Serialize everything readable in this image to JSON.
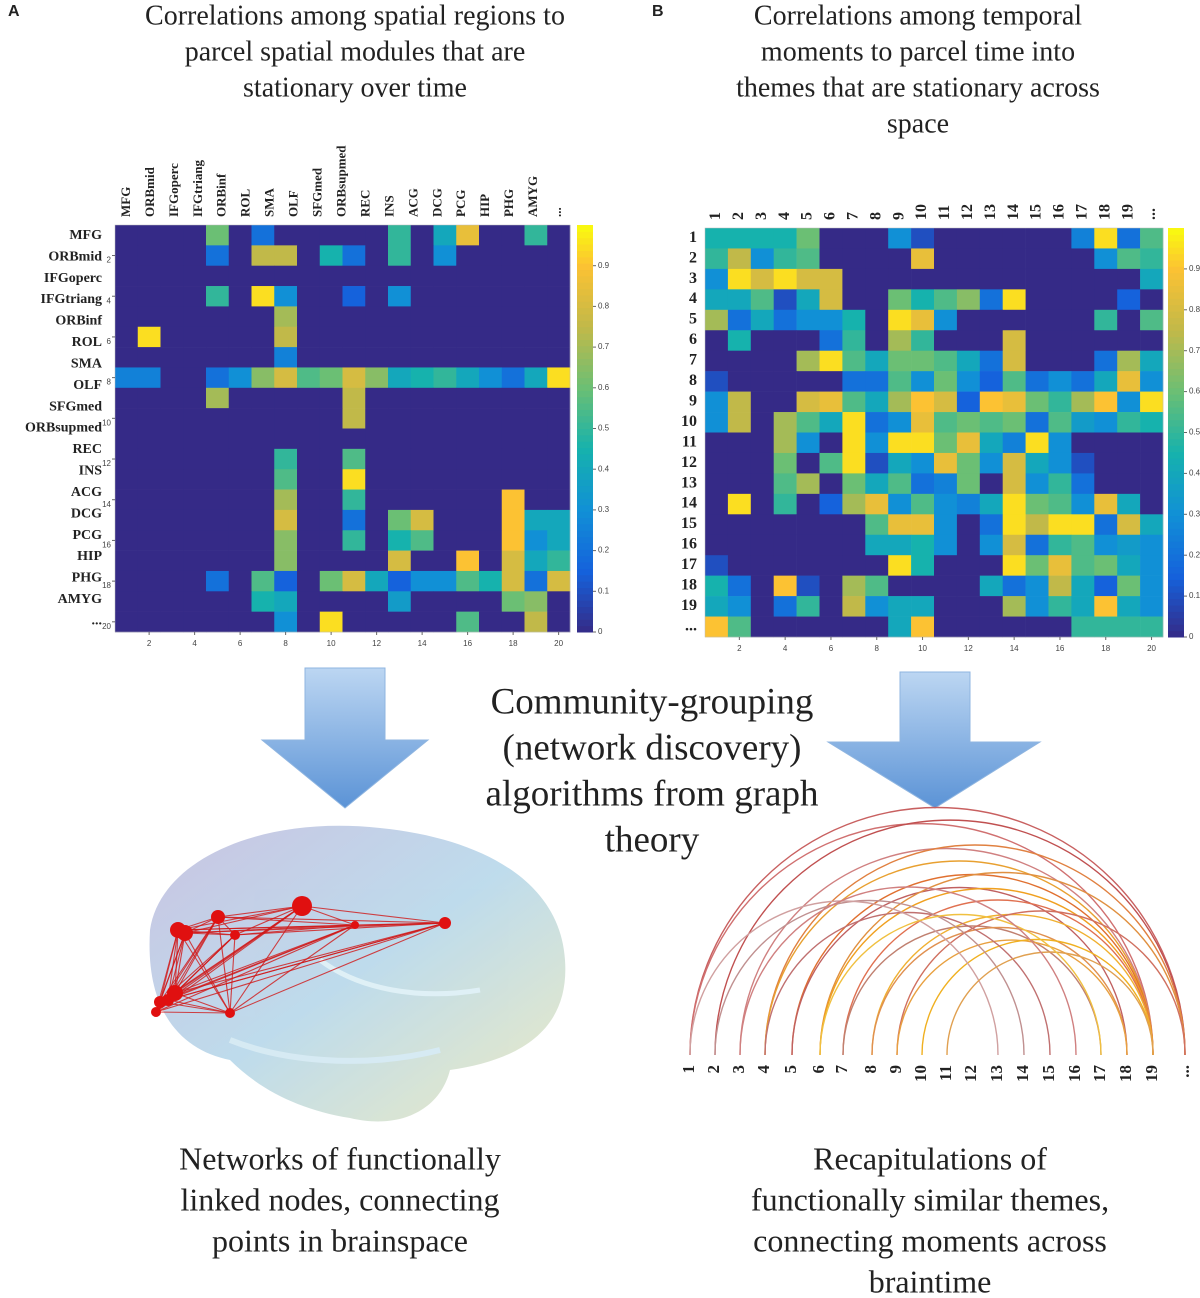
{
  "chart_data": [
    {
      "type": "heatmap",
      "panel": "A",
      "title_lines": [
        "Correlations among spatial regions to",
        "parcel spatial modules that are",
        "stationary over time"
      ],
      "row_labels": [
        "MFG",
        "ORBmid",
        "IFGoperc",
        "IFGtriang",
        "ORBinf",
        "ROL",
        "SMA",
        "OLF",
        "SFGmed",
        "ORBsupmed",
        "REC",
        "INS",
        "ACG",
        "DCG",
        "PCG",
        "HIP",
        "PHG",
        "AMYG",
        "..."
      ],
      "col_labels": [
        "MFG",
        "ORBmid",
        "IFGoperc",
        "IFGtriang",
        "ORBinf",
        "ROL",
        "SMA",
        "OLF",
        "SFGmed",
        "ORBsupmed",
        "REC",
        "INS",
        "ACG",
        "DCG",
        "PCG",
        "HIP",
        "PHG",
        "AMYG",
        "..."
      ],
      "xlim": [
        0.5,
        20.5
      ],
      "ylim": [
        0.5,
        20.5
      ],
      "xticks": [
        2,
        4,
        6,
        8,
        10,
        12,
        14,
        16,
        18,
        20
      ],
      "yticks": [
        2,
        4,
        6,
        8,
        10,
        12,
        14,
        16,
        18,
        20
      ],
      "clim": [
        0,
        1
      ],
      "cticks": [
        0,
        0.1,
        0.2,
        0.3,
        0.4,
        0.5,
        0.6,
        0.7,
        0.8,
        0.9
      ],
      "values": [
        [
          0,
          0,
          0,
          0,
          0.6,
          0,
          0.2,
          0,
          0,
          0,
          0,
          0,
          0.5,
          0,
          0.4,
          0.85,
          0,
          0,
          0.5,
          0
        ],
        [
          0,
          0,
          0,
          0,
          0.2,
          0,
          0.75,
          0.75,
          0,
          0.45,
          0.2,
          0,
          0.5,
          0,
          0.3,
          0,
          0,
          0,
          0,
          0
        ],
        [
          0,
          0,
          0,
          0,
          0,
          0,
          0,
          0,
          0,
          0,
          0,
          0,
          0,
          0,
          0,
          0,
          0,
          0,
          0,
          0
        ],
        [
          0,
          0,
          0,
          0,
          0.5,
          0,
          0.95,
          0.3,
          0,
          0,
          0.15,
          0,
          0.3,
          0,
          0,
          0,
          0,
          0,
          0,
          0
        ],
        [
          0,
          0,
          0,
          0,
          0,
          0,
          0,
          0.7,
          0,
          0,
          0,
          0,
          0,
          0,
          0,
          0,
          0,
          0,
          0,
          0
        ],
        [
          0,
          0.95,
          0,
          0,
          0,
          0,
          0,
          0.75,
          0,
          0,
          0,
          0,
          0,
          0,
          0,
          0,
          0,
          0,
          0,
          0
        ],
        [
          0,
          0,
          0,
          0,
          0,
          0,
          0,
          0.25,
          0,
          0,
          0,
          0,
          0,
          0,
          0,
          0,
          0,
          0,
          0,
          0
        ],
        [
          0.25,
          0.25,
          0,
          0,
          0.2,
          0.3,
          0.65,
          0.8,
          0.55,
          0.6,
          0.8,
          0.65,
          0.4,
          0.45,
          0.5,
          0.4,
          0.3,
          0.2,
          0.4,
          0.95
        ],
        [
          0,
          0,
          0,
          0,
          0.7,
          0,
          0,
          0,
          0,
          0,
          0.75,
          0,
          0,
          0,
          0,
          0,
          0,
          0,
          0,
          0
        ],
        [
          0,
          0,
          0,
          0,
          0,
          0,
          0,
          0,
          0,
          0,
          0.75,
          0,
          0,
          0,
          0,
          0,
          0,
          0,
          0,
          0
        ],
        [
          0,
          0,
          0,
          0,
          0,
          0,
          0,
          0,
          0,
          0,
          0,
          0,
          0,
          0,
          0,
          0,
          0,
          0,
          0,
          0
        ],
        [
          0,
          0,
          0,
          0,
          0,
          0,
          0,
          0.5,
          0,
          0,
          0.55,
          0,
          0,
          0,
          0,
          0,
          0,
          0,
          0,
          0
        ],
        [
          0,
          0,
          0,
          0,
          0,
          0,
          0,
          0.55,
          0,
          0,
          0.95,
          0,
          0,
          0,
          0,
          0,
          0,
          0,
          0,
          0
        ],
        [
          0,
          0,
          0,
          0,
          0,
          0,
          0,
          0.7,
          0,
          0,
          0.5,
          0,
          0,
          0,
          0,
          0,
          0,
          0.9,
          0,
          0
        ],
        [
          0,
          0,
          0,
          0,
          0,
          0,
          0,
          0.8,
          0,
          0,
          0.2,
          0,
          0.6,
          0.8,
          0,
          0,
          0,
          0.9,
          0.4,
          0.4
        ],
        [
          0,
          0,
          0,
          0,
          0,
          0,
          0,
          0.65,
          0,
          0,
          0.5,
          0,
          0.45,
          0.55,
          0,
          0,
          0,
          0.9,
          0.3,
          0.4
        ],
        [
          0,
          0,
          0,
          0,
          0,
          0,
          0,
          0.65,
          0,
          0,
          0,
          0,
          0.8,
          0,
          0,
          0.9,
          0,
          0.8,
          0.4,
          0.5
        ],
        [
          0,
          0,
          0,
          0,
          0.2,
          0,
          0.55,
          0.15,
          0,
          0.6,
          0.8,
          0.4,
          0.15,
          0.3,
          0.3,
          0.55,
          0.45,
          0.8,
          0.2,
          0.8
        ],
        [
          0,
          0,
          0,
          0,
          0,
          0,
          0.45,
          0.4,
          0,
          0,
          0,
          0,
          0.35,
          0,
          0,
          0,
          0,
          0.6,
          0.65,
          0
        ],
        [
          0,
          0,
          0,
          0,
          0,
          0,
          0,
          0.3,
          0,
          0.95,
          0,
          0,
          0,
          0,
          0,
          0.55,
          0,
          0,
          0.75,
          0
        ]
      ]
    },
    {
      "type": "heatmap",
      "panel": "B",
      "title_lines": [
        "Correlations among temporal",
        "moments to parcel time into",
        "themes that are stationary across",
        "space"
      ],
      "row_labels": [
        "1",
        "2",
        "3",
        "4",
        "5",
        "6",
        "7",
        "8",
        "9",
        "10",
        "11",
        "12",
        "13",
        "14",
        "15",
        "16",
        "17",
        "18",
        "19",
        "..."
      ],
      "col_labels": [
        "1",
        "2",
        "3",
        "4",
        "5",
        "6",
        "7",
        "8",
        "9",
        "10",
        "11",
        "12",
        "13",
        "14",
        "15",
        "16",
        "17",
        "18",
        "19",
        "..."
      ],
      "xlim": [
        0.5,
        20.5
      ],
      "ylim": [
        0.5,
        20.5
      ],
      "xticks": [
        2,
        4,
        6,
        8,
        10,
        12,
        14,
        16,
        18,
        20
      ],
      "clim": [
        0,
        1
      ],
      "cticks": [
        0,
        0.1,
        0.2,
        0.3,
        0.4,
        0.5,
        0.6,
        0.7,
        0.8,
        0.9
      ],
      "values": [
        [
          0.45,
          0.45,
          0.45,
          0.45,
          0.6,
          0,
          0,
          0,
          0.3,
          0.1,
          0,
          0,
          0,
          0,
          0,
          0,
          0.25,
          0.95,
          0.2,
          0.55
        ],
        [
          0.5,
          0.75,
          0.3,
          0.5,
          0.55,
          0,
          0,
          0,
          0,
          0.85,
          0,
          0,
          0,
          0,
          0,
          0,
          0,
          0.3,
          0.55,
          0.5
        ],
        [
          0.3,
          0.95,
          0.8,
          0.95,
          0.8,
          0.8,
          0,
          0,
          0,
          0,
          0,
          0,
          0,
          0,
          0,
          0,
          0,
          0,
          0,
          0.4
        ],
        [
          0.4,
          0.4,
          0.55,
          0.1,
          0.4,
          0.8,
          0,
          0,
          0.6,
          0.45,
          0.55,
          0.65,
          0.2,
          0.95,
          0,
          0,
          0,
          0,
          0.15,
          0
        ],
        [
          0.7,
          0.2,
          0.4,
          0.2,
          0.3,
          0.3,
          0.45,
          0,
          0.95,
          0.85,
          0.3,
          0,
          0,
          0,
          0,
          0,
          0,
          0.5,
          0,
          0.55
        ],
        [
          0,
          0.45,
          0,
          0,
          0,
          0.2,
          0.5,
          0,
          0.7,
          0.5,
          0,
          0,
          0,
          0.8,
          0,
          0,
          0,
          0,
          0,
          0
        ],
        [
          0,
          0,
          0,
          0,
          0.7,
          0.95,
          0.55,
          0.4,
          0.6,
          0.6,
          0.55,
          0.4,
          0.2,
          0.8,
          0,
          0,
          0,
          0.2,
          0.7,
          0.4
        ],
        [
          0.1,
          0,
          0,
          0,
          0,
          0,
          0.2,
          0.2,
          0.55,
          0.3,
          0.6,
          0.3,
          0.15,
          0.55,
          0.2,
          0.3,
          0.2,
          0.4,
          0.85,
          0.3
        ],
        [
          0.3,
          0.75,
          0,
          0,
          0.8,
          0.85,
          0.55,
          0.4,
          0.7,
          0.9,
          0.8,
          0.15,
          0.9,
          0.85,
          0.6,
          0.5,
          0.7,
          0.9,
          0.3,
          0.95
        ],
        [
          0.3,
          0.75,
          0,
          0.7,
          0.55,
          0.4,
          0.95,
          0.2,
          0.3,
          0.85,
          0.55,
          0.6,
          0.55,
          0.6,
          0.2,
          0.55,
          0.35,
          0.3,
          0.5,
          0.45
        ],
        [
          0,
          0,
          0,
          0.7,
          0.3,
          0,
          0.95,
          0.3,
          0.95,
          0.95,
          0.6,
          0.85,
          0.4,
          0.25,
          0.95,
          0.3,
          0,
          0,
          0,
          0
        ],
        [
          0,
          0,
          0,
          0.6,
          0,
          0.55,
          0.95,
          0.1,
          0.4,
          0.3,
          0.85,
          0.6,
          0.3,
          0.8,
          0.4,
          0.3,
          0.1,
          0,
          0,
          0
        ],
        [
          0,
          0,
          0,
          0.55,
          0.7,
          0,
          0.6,
          0.4,
          0.55,
          0.2,
          0.25,
          0.6,
          0,
          0.8,
          0.3,
          0.5,
          0.2,
          0,
          0,
          0
        ],
        [
          0,
          0.95,
          0,
          0.5,
          0,
          0.15,
          0.7,
          0.85,
          0.3,
          0.55,
          0.3,
          0.25,
          0.4,
          0.95,
          0.6,
          0.55,
          0.3,
          0.85,
          0.4,
          0
        ],
        [
          0,
          0,
          0,
          0,
          0,
          0,
          0,
          0.55,
          0.85,
          0.85,
          0.3,
          0,
          0.2,
          0.95,
          0.75,
          0.95,
          0.95,
          0.2,
          0.8,
          0.4
        ],
        [
          0,
          0,
          0,
          0,
          0,
          0,
          0,
          0.4,
          0.4,
          0.45,
          0.3,
          0,
          0.3,
          0.8,
          0.2,
          0.5,
          0.55,
          0.3,
          0.35,
          0.3
        ],
        [
          0.1,
          0,
          0,
          0,
          0,
          0,
          0,
          0,
          0.95,
          0.45,
          0,
          0,
          0,
          0.95,
          0.6,
          0.85,
          0.55,
          0.6,
          0.4,
          0.3
        ],
        [
          0.45,
          0.2,
          0,
          0.9,
          0.1,
          0,
          0.7,
          0.55,
          0,
          0,
          0,
          0,
          0.4,
          0.2,
          0.3,
          0.75,
          0.4,
          0.15,
          0.6,
          0.3
        ],
        [
          0.4,
          0.3,
          0,
          0.2,
          0.5,
          0,
          0.75,
          0.3,
          0.4,
          0.4,
          0,
          0,
          0,
          0.7,
          0.3,
          0.5,
          0.4,
          0.9,
          0.4,
          0.3
        ],
        [
          0.9,
          0.55,
          0,
          0,
          0,
          0,
          0,
          0,
          0.4,
          0.9,
          0,
          0,
          0,
          0,
          0,
          0,
          0.5,
          0.5,
          0.5,
          0.5
        ]
      ]
    }
  ],
  "center_text": [
    "Community-grouping",
    "(network discovery)",
    "algorithms from graph",
    "theory"
  ],
  "arc_labels": [
    "1",
    "2",
    "3",
    "4",
    "5",
    "6",
    "7",
    "8",
    "9",
    "10",
    "11",
    "12",
    "13",
    "14",
    "15",
    "16",
    "17",
    "18",
    "19",
    "..."
  ],
  "caption_left": [
    "Networks of functionally",
    "linked nodes, connecting",
    "points in brainspace"
  ],
  "caption_right": [
    "Recapitulations of",
    "functionally similar themes,",
    "connecting moments across",
    "braintime"
  ]
}
